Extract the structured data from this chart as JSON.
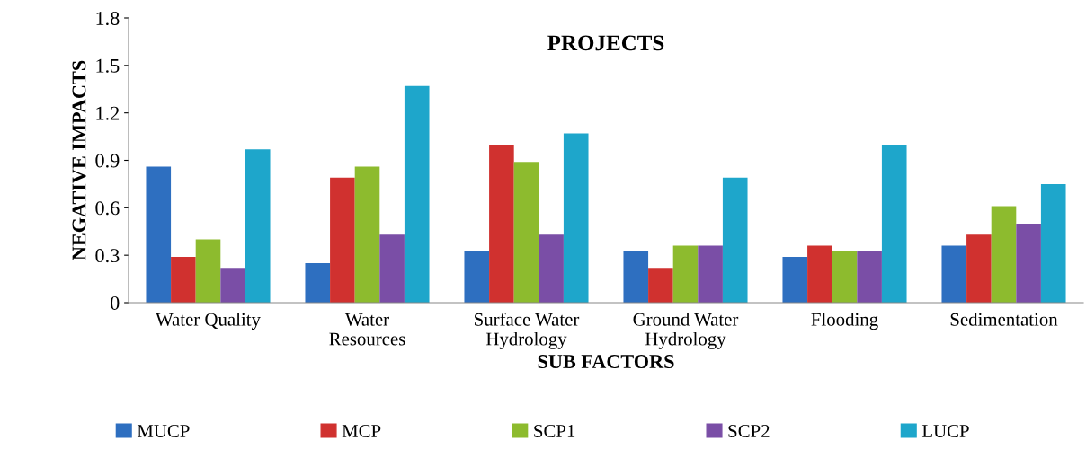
{
  "chart_data": {
    "type": "bar",
    "title": "PROJECTS",
    "xlabel": "SUB FACTORS",
    "ylabel": "NEGATIVE IMPACTS",
    "categories": [
      "Water Quality",
      "Water\nResources",
      "Surface Water\nHydrology",
      "Ground Water\nHydrology",
      "Flooding",
      "Sedimentation"
    ],
    "series": [
      {
        "name": "MUCP",
        "color": "#2e6fc0",
        "values": [
          0.86,
          0.25,
          0.33,
          0.33,
          0.29,
          0.36
        ]
      },
      {
        "name": "MCP",
        "color": "#d0312f",
        "values": [
          0.29,
          0.79,
          1.0,
          0.22,
          0.36,
          0.43
        ]
      },
      {
        "name": "SCP1",
        "color": "#8dbb2e",
        "values": [
          0.4,
          0.86,
          0.89,
          0.36,
          0.33,
          0.61
        ]
      },
      {
        "name": "SCP2",
        "color": "#7a4ea6",
        "values": [
          0.22,
          0.43,
          0.43,
          0.36,
          0.33,
          0.5
        ]
      },
      {
        "name": "LUCP",
        "color": "#1ea6cb",
        "values": [
          0.97,
          1.37,
          1.07,
          0.79,
          1.0,
          0.75
        ]
      }
    ],
    "ylim": [
      0,
      1.8
    ],
    "yticks": [
      {
        "value": 0,
        "label": "0"
      },
      0.3,
      0.6,
      0.9,
      1.2,
      1.5,
      1.8
    ],
    "grid": false,
    "legend": "bottom"
  }
}
